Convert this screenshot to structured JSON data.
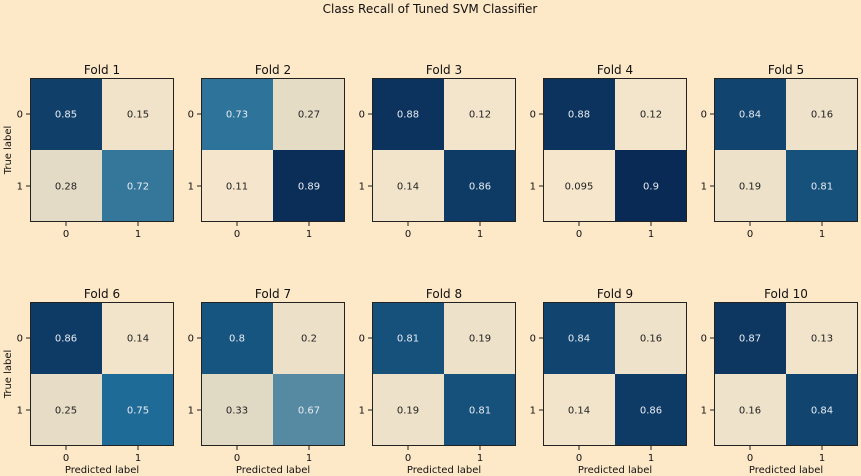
{
  "chart_data": {
    "type": "heatmap",
    "title": "Class Recall of Tuned SVM Classifier",
    "xlabel": "Predicted label",
    "ylabel": "True label",
    "tick_labels": [
      "0",
      "1"
    ],
    "value_range": [
      0,
      1
    ],
    "colormap": {
      "low": "#f5e6cc",
      "mid": "#1f6b97",
      "high": "#082a54"
    },
    "folds": [
      {
        "title": "Fold 1",
        "matrix": [
          [
            "0.85",
            "0.15"
          ],
          [
            "0.28",
            "0.72"
          ]
        ]
      },
      {
        "title": "Fold 2",
        "matrix": [
          [
            "0.73",
            "0.27"
          ],
          [
            "0.11",
            "0.89"
          ]
        ]
      },
      {
        "title": "Fold 3",
        "matrix": [
          [
            "0.88",
            "0.12"
          ],
          [
            "0.14",
            "0.86"
          ]
        ]
      },
      {
        "title": "Fold 4",
        "matrix": [
          [
            "0.88",
            "0.12"
          ],
          [
            "0.095",
            "0.9"
          ]
        ]
      },
      {
        "title": "Fold 5",
        "matrix": [
          [
            "0.84",
            "0.16"
          ],
          [
            "0.19",
            "0.81"
          ]
        ]
      },
      {
        "title": "Fold 6",
        "matrix": [
          [
            "0.86",
            "0.14"
          ],
          [
            "0.25",
            "0.75"
          ]
        ]
      },
      {
        "title": "Fold 7",
        "matrix": [
          [
            "0.8",
            "0.2"
          ],
          [
            "0.33",
            "0.67"
          ]
        ]
      },
      {
        "title": "Fold 8",
        "matrix": [
          [
            "0.81",
            "0.19"
          ],
          [
            "0.19",
            "0.81"
          ]
        ]
      },
      {
        "title": "Fold 9",
        "matrix": [
          [
            "0.84",
            "0.16"
          ],
          [
            "0.14",
            "0.86"
          ]
        ]
      },
      {
        "title": "Fold 10",
        "matrix": [
          [
            "0.87",
            "0.13"
          ],
          [
            "0.16",
            "0.84"
          ]
        ]
      }
    ]
  }
}
